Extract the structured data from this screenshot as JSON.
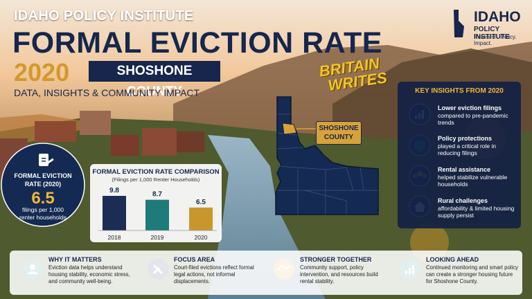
{
  "header": {
    "org": "IDAHO POLICY INSTITUTE",
    "title": "FORMAL EVICTION RATE",
    "year": "2020",
    "county": "SHOSHONE COUNTY",
    "subtitle": "DATA, INSIGHTS & COMMUNITY IMPACT"
  },
  "logo": {
    "name": "IDAHO",
    "org": "POLICY INSTITUTE",
    "tagline": "Research. Policy. Impact."
  },
  "watermark": [
    "BRITAIN",
    "WRITES"
  ],
  "map": {
    "label": [
      "SHOSHONE",
      "COUNTY"
    ]
  },
  "stat": {
    "label": "FORMAL EVICTION RATE (2020)",
    "value": "6.5",
    "caption": "filings per 1,000 renter households"
  },
  "chart_data": {
    "type": "bar",
    "title": "FORMAL EVICTION RATE COMPARISON",
    "subtitle": "(Filings per 1,000 Renter Households)",
    "categories": [
      "2018",
      "2019",
      "2020"
    ],
    "values": [
      9.8,
      8.7,
      6.5
    ],
    "colors": [
      "#1b2d55",
      "#1f7a7a",
      "#c9962e"
    ]
  },
  "insights": {
    "title": "KEY INSIGHTS FROM 2020",
    "items": [
      {
        "title": "Lower eviction filings",
        "text": "compared to pre-pandemic trends"
      },
      {
        "title": "Policy protections",
        "text": "played a critical role in reducing filings"
      },
      {
        "title": "Rental assistance",
        "text": "helped stabilize vulnerable households"
      },
      {
        "title": "Rural challenges",
        "text": "affordability & limited housing supply persist"
      }
    ]
  },
  "cards": [
    {
      "title": "WHY IT MATTERS",
      "text": "Eviction data helps understand housing stability, economic stress, and community well-being."
    },
    {
      "title": "FOCUS AREA",
      "text": "Court-filed evictions reflect formal legal actions, not informal displacements."
    },
    {
      "title": "STRONGER TOGETHER",
      "text": "Community support, policy intervention, and resources build rental stability."
    },
    {
      "title": "LOOKING AHEAD",
      "text": "Continued monitoring and smart policy can create a stronger housing future for Shoshone County."
    }
  ]
}
